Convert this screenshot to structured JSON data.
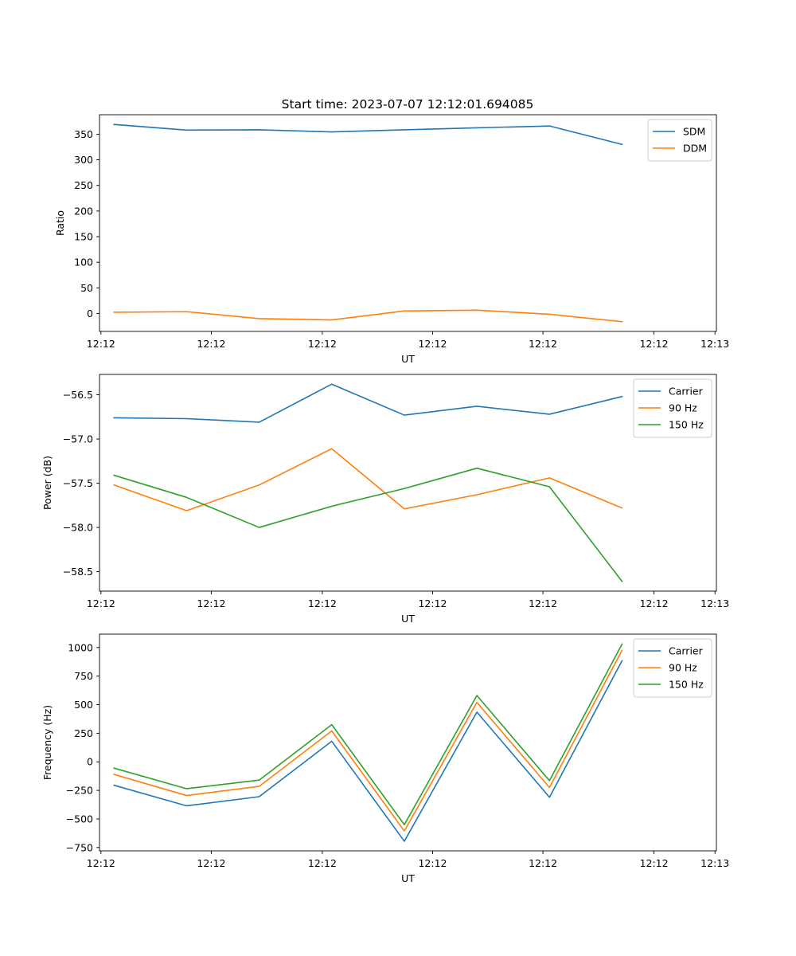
{
  "figure_title": "Start time: 2023-07-07 12:12:01.694085",
  "colors": {
    "blue": "#1f77b4",
    "orange": "#ff7f0e",
    "green": "#2ca02c"
  },
  "chart_data": [
    {
      "type": "line",
      "title": "Start time: 2023-07-07 12:12:01.694085",
      "xlabel": "UT",
      "ylabel": "Ratio",
      "x": [
        1,
        2,
        3,
        4,
        5,
        6,
        7,
        8
      ],
      "xlim": [
        0.8,
        9.3
      ],
      "x_ticks": [
        {
          "value": 0.82,
          "label": "12:12"
        },
        {
          "value": 2.34,
          "label": "12:12"
        },
        {
          "value": 3.87,
          "label": "12:12"
        },
        {
          "value": 5.39,
          "label": "12:12"
        },
        {
          "value": 6.91,
          "label": "12:12"
        },
        {
          "value": 8.44,
          "label": "12:12"
        },
        {
          "value": 9.28,
          "label": "12:13"
        }
      ],
      "ylim": [
        -35,
        388
      ],
      "y_ticks": [
        0,
        50,
        100,
        150,
        200,
        250,
        300,
        350
      ],
      "legend": "top-right",
      "series": [
        {
          "name": "SDM",
          "color": "#1f77b4",
          "values": [
            369,
            358,
            358.5,
            354.5,
            358.5,
            362.5,
            366,
            330
          ]
        },
        {
          "name": "DDM",
          "color": "#ff7f0e",
          "values": [
            2.5,
            3.5,
            -10,
            -12.5,
            5,
            6.5,
            -1.5,
            -16
          ]
        }
      ]
    },
    {
      "type": "line",
      "xlabel": "UT",
      "ylabel": "Power (dB)",
      "x": [
        1,
        2,
        3,
        4,
        5,
        6,
        7,
        8
      ],
      "xlim": [
        0.8,
        9.3
      ],
      "x_ticks": [
        {
          "value": 0.82,
          "label": "12:12"
        },
        {
          "value": 2.34,
          "label": "12:12"
        },
        {
          "value": 3.87,
          "label": "12:12"
        },
        {
          "value": 5.39,
          "label": "12:12"
        },
        {
          "value": 6.91,
          "label": "12:12"
        },
        {
          "value": 8.44,
          "label": "12:12"
        },
        {
          "value": 9.28,
          "label": "12:13"
        }
      ],
      "ylim": [
        -58.72,
        -56.27
      ],
      "y_ticks": [
        -56.5,
        -57.0,
        -57.5,
        -58.0,
        -58.5
      ],
      "y_tick_labels": [
        "−56.5",
        "−57.0",
        "−57.5",
        "−58.0",
        "−58.5"
      ],
      "legend": "top-right",
      "series": [
        {
          "name": "Carrier",
          "color": "#1f77b4",
          "values": [
            -56.76,
            -56.77,
            -56.81,
            -56.38,
            -56.73,
            -56.63,
            -56.72,
            -56.52
          ]
        },
        {
          "name": "90 Hz",
          "color": "#ff7f0e",
          "values": [
            -57.52,
            -57.81,
            -57.52,
            -57.11,
            -57.79,
            -57.63,
            -57.44,
            -57.78
          ]
        },
        {
          "name": "150 Hz",
          "color": "#2ca02c",
          "values": [
            -57.41,
            -57.66,
            -58.0,
            -57.76,
            -57.56,
            -57.33,
            -57.54,
            -58.61
          ]
        }
      ]
    },
    {
      "type": "line",
      "xlabel": "UT",
      "ylabel": "Frequency (Hz)",
      "x": [
        1,
        2,
        3,
        4,
        5,
        6,
        7,
        8
      ],
      "xlim": [
        0.8,
        9.3
      ],
      "x_ticks": [
        {
          "value": 0.82,
          "label": "12:12"
        },
        {
          "value": 2.34,
          "label": "12:12"
        },
        {
          "value": 3.87,
          "label": "12:12"
        },
        {
          "value": 5.39,
          "label": "12:12"
        },
        {
          "value": 6.91,
          "label": "12:12"
        },
        {
          "value": 8.44,
          "label": "12:12"
        },
        {
          "value": 9.28,
          "label": "12:13"
        }
      ],
      "ylim": [
        -779,
        1117
      ],
      "y_ticks": [
        1000,
        750,
        500,
        250,
        0,
        -250,
        -500,
        -750
      ],
      "y_tick_labels": [
        "1000",
        "750",
        "500",
        "250",
        "0",
        "−250",
        "−500",
        "−750"
      ],
      "legend": "top-right",
      "series": [
        {
          "name": "Carrier",
          "color": "#1f77b4",
          "values": [
            -205,
            -385,
            -305,
            180,
            -695,
            435,
            -310,
            885
          ]
        },
        {
          "name": "90 Hz",
          "color": "#ff7f0e",
          "values": [
            -110,
            -295,
            -215,
            270,
            -605,
            520,
            -225,
            975
          ]
        },
        {
          "name": "150 Hz",
          "color": "#2ca02c",
          "values": [
            -55,
            -235,
            -160,
            325,
            -550,
            580,
            -165,
            1030
          ]
        }
      ]
    }
  ]
}
